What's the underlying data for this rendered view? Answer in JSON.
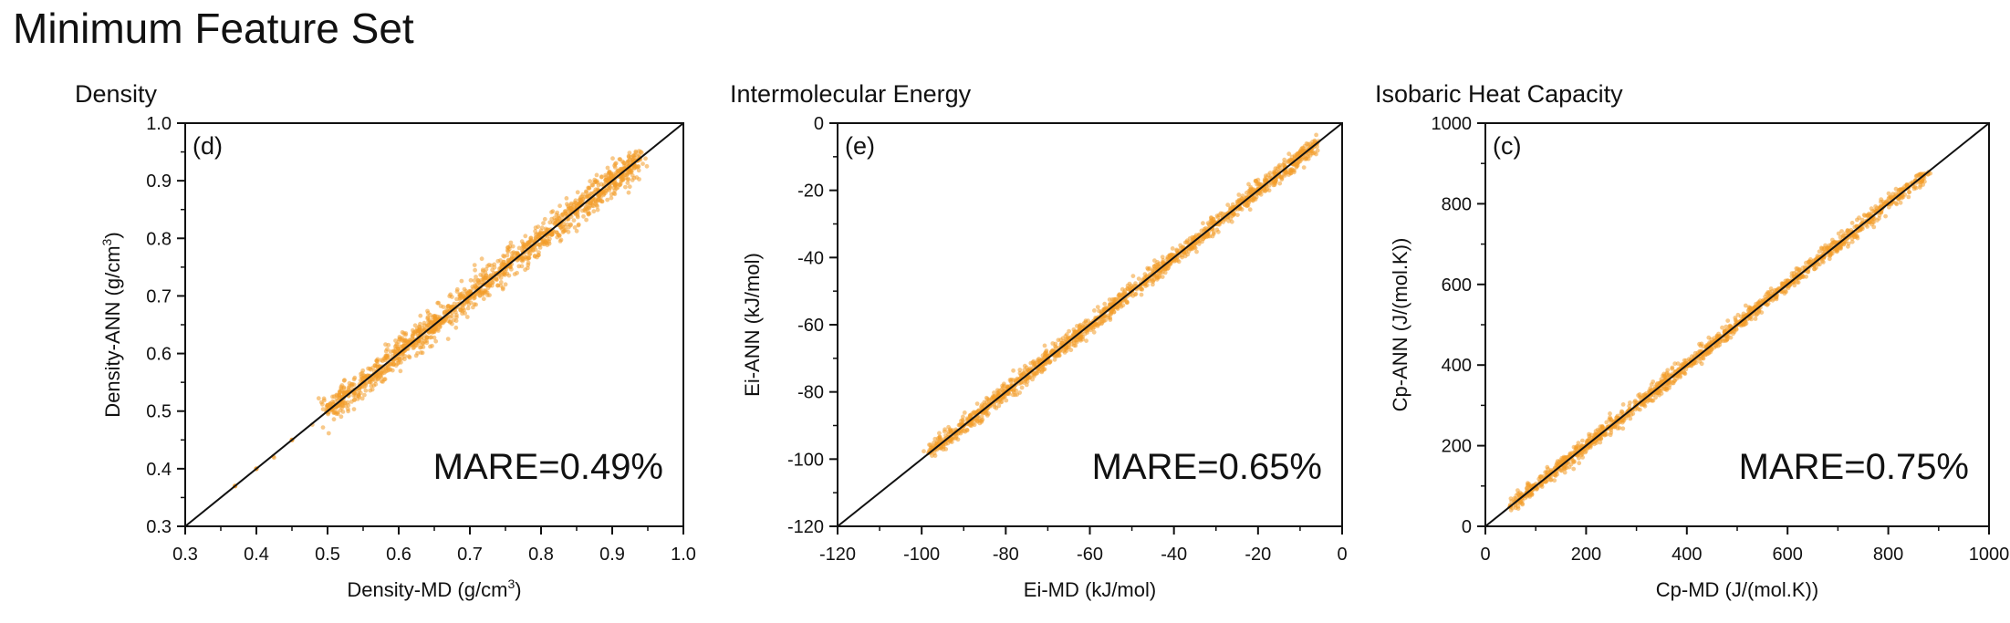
{
  "figure_title": "Minimum Feature Set",
  "chart_data": [
    {
      "type": "scatter",
      "panel_title": "Density",
      "panel_label": "(d)",
      "annotation": "MARE=0.49%",
      "xlabel": "Density-MD (g/cm",
      "xlabel_sup": "3",
      "xlabel_end": ")",
      "ylabel": "Density-ANN (g/cm",
      "ylabel_sup": "3",
      "ylabel_end": ")",
      "xlim": [
        0.3,
        1.0
      ],
      "ylim": [
        0.3,
        1.0
      ],
      "xticks": [
        0.3,
        0.4,
        0.5,
        0.6,
        0.7,
        0.8,
        0.9,
        1.0
      ],
      "yticks": [
        0.3,
        0.4,
        0.5,
        0.6,
        0.7,
        0.8,
        0.9,
        1.0
      ],
      "tick_labels": [
        "0.3",
        "0.4",
        "0.5",
        "0.6",
        "0.7",
        "0.8",
        "0.9",
        "1.0"
      ],
      "data_range": [
        0.36,
        0.94
      ],
      "dense_range": [
        0.5,
        0.94
      ],
      "spread": 0.012,
      "point_color": "#f39c2a",
      "line_color": "#111111",
      "series": [
        {
          "name": "",
          "x": [
            0.37,
            0.4,
            0.45,
            0.5,
            0.55,
            0.6,
            0.65,
            0.7,
            0.75,
            0.8,
            0.85,
            0.9,
            0.93
          ],
          "y": [
            0.37,
            0.4,
            0.45,
            0.51,
            0.55,
            0.6,
            0.65,
            0.7,
            0.75,
            0.8,
            0.85,
            0.9,
            0.93
          ]
        }
      ]
    },
    {
      "type": "scatter",
      "panel_title": "Intermolecular Energy",
      "panel_label": "(e)",
      "annotation": "MARE=0.65%",
      "xlabel": "Ei-MD (kJ/mol)",
      "xlabel_sup": "",
      "xlabel_end": "",
      "ylabel": "Ei-ANN (kJ/mol)",
      "ylabel_sup": "",
      "ylabel_end": "",
      "xlim": [
        -120,
        0
      ],
      "ylim": [
        -120,
        0
      ],
      "xticks": [
        -120,
        -100,
        -80,
        -60,
        -40,
        -20,
        0
      ],
      "yticks": [
        -120,
        -100,
        -80,
        -60,
        -40,
        -20,
        0
      ],
      "tick_labels": [
        "-120",
        "-100",
        "-80",
        "-60",
        "-40",
        "-20",
        "0"
      ],
      "data_range": [
        -98,
        -6
      ],
      "dense_range": [
        -98,
        -6
      ],
      "spread": 1.2,
      "point_color": "#f39c2a",
      "line_color": "#111111",
      "series": [
        {
          "name": "",
          "x": [
            -98,
            -90,
            -80,
            -70,
            -60,
            -50,
            -40,
            -30,
            -20,
            -10,
            -6
          ],
          "y": [
            -98,
            -90,
            -80,
            -70,
            -60,
            -50,
            -40,
            -30,
            -20,
            -10,
            -6
          ]
        }
      ]
    },
    {
      "type": "scatter",
      "panel_title": "Isobaric Heat Capacity",
      "panel_label": "(c)",
      "annotation": "MARE=0.75%",
      "xlabel": "Cp-MD (J/(mol.K))",
      "xlabel_sup": "",
      "xlabel_end": "",
      "ylabel": "Cp-ANN (J/(mol.K))",
      "ylabel_sup": "",
      "ylabel_end": "",
      "xlim": [
        0,
        1000
      ],
      "ylim": [
        0,
        1000
      ],
      "xticks": [
        0,
        200,
        400,
        600,
        800,
        1000
      ],
      "yticks": [
        0,
        200,
        400,
        600,
        800,
        1000
      ],
      "tick_labels": [
        "0",
        "200",
        "400",
        "600",
        "800",
        "1000"
      ],
      "data_range": [
        50,
        880
      ],
      "dense_range": [
        50,
        880
      ],
      "spread": 9,
      "point_color": "#f39c2a",
      "line_color": "#111111",
      "series": [
        {
          "name": "",
          "x": [
            50,
            100,
            200,
            300,
            400,
            500,
            600,
            700,
            800,
            870
          ],
          "y": [
            50,
            100,
            200,
            300,
            400,
            500,
            600,
            700,
            800,
            870
          ]
        }
      ]
    }
  ]
}
